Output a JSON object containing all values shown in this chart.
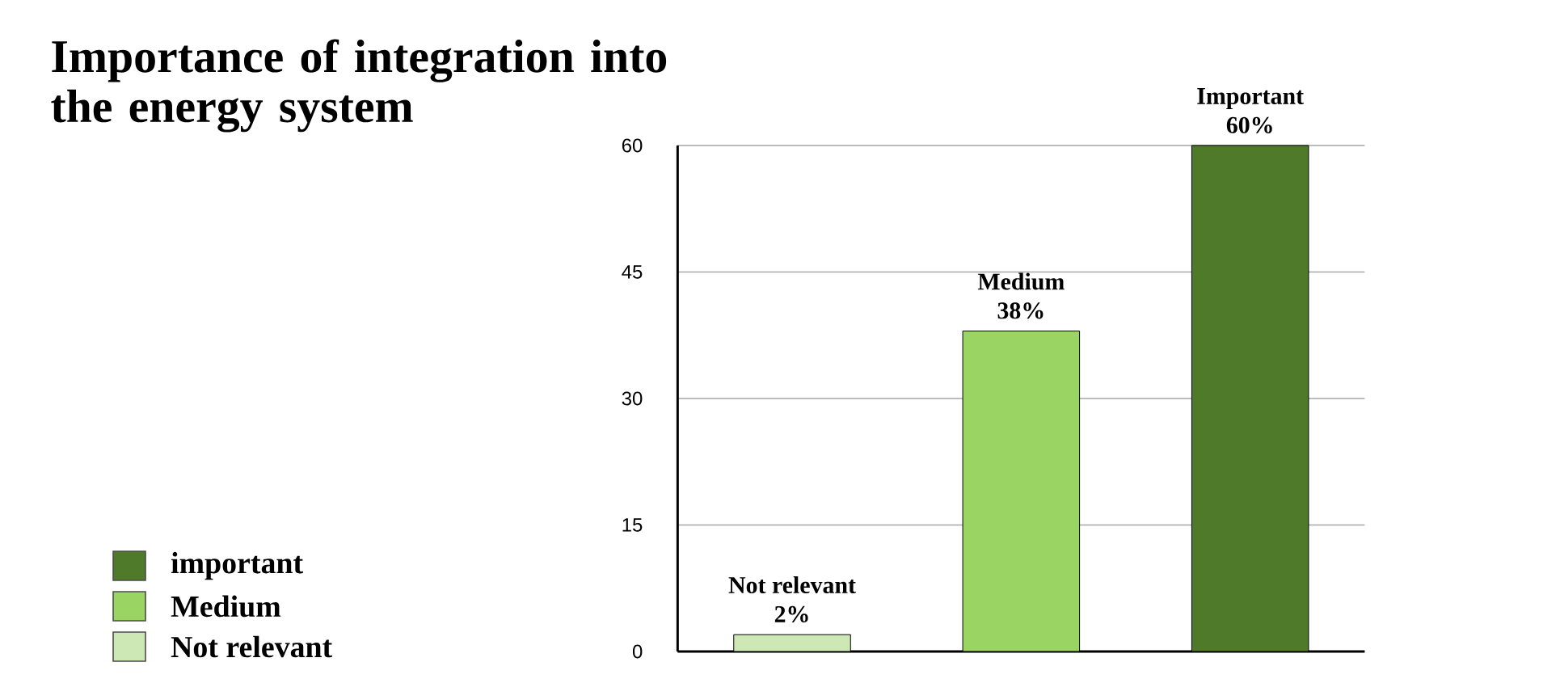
{
  "chart_data": {
    "type": "bar",
    "title": "Importance of integration into the energy system",
    "categories": [
      "Not relevant",
      "Medium",
      "Important"
    ],
    "series": [
      {
        "name": "important",
        "color": "#4e7a2a",
        "values": [
          null,
          null,
          60
        ],
        "value_labels": [
          null,
          null,
          "60%"
        ]
      },
      {
        "name": "Medium",
        "color": "#9ad462",
        "values": [
          null,
          38,
          null
        ],
        "value_labels": [
          null,
          "38%",
          null
        ]
      },
      {
        "name": "Not relevant",
        "color": "#cde8b5",
        "values": [
          2,
          null,
          null
        ],
        "value_labels": [
          "2%",
          null,
          null
        ]
      }
    ],
    "ylim": [
      0,
      60
    ],
    "yticks": [
      0,
      15,
      30,
      45,
      60
    ],
    "grid": "y",
    "legend": "bottom left"
  }
}
